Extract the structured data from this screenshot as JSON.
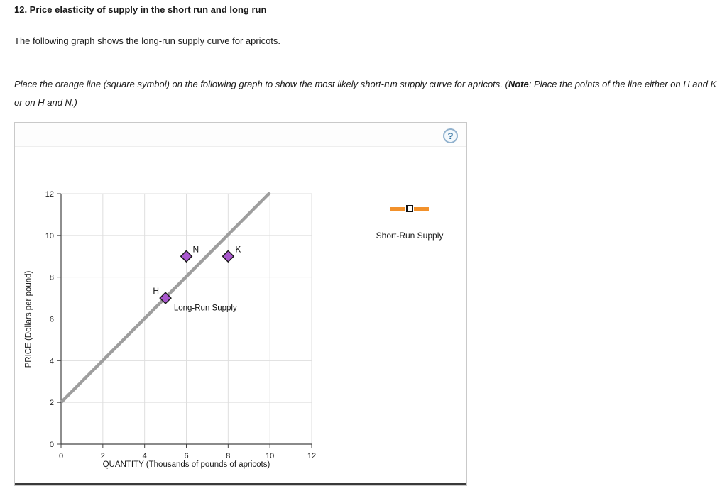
{
  "page": {
    "title": "12. Price elasticity of supply in the short run and long run",
    "intro": "The following graph shows the long-run supply curve for apricots."
  },
  "instruction": {
    "part1": "Place the orange line (square symbol) on the following graph to show the most likely short-run supply curve for apricots. (",
    "note_word": "Note",
    "part2": ": Place the points of the line either on H and K or on H and N.)"
  },
  "panel": {
    "help_icon": "?"
  },
  "legend": {
    "label": "Short-Run Supply",
    "line_color": "#f2912b",
    "square_fill": "#ffffff",
    "square_border": "#111111"
  },
  "chart_data": {
    "type": "scatter",
    "title": "",
    "xlabel": "QUANTITY (Thousands of pounds of apricots)",
    "ylabel": "PRICE (Dollars per pound)",
    "xlim": [
      0,
      12
    ],
    "ylim": [
      0,
      12
    ],
    "xticks": [
      0,
      2,
      4,
      6,
      8,
      10,
      12
    ],
    "yticks": [
      0,
      2,
      4,
      6,
      8,
      10,
      12
    ],
    "grid": true,
    "long_run_supply": {
      "label": "Long-Run Supply",
      "label_pos": [
        5.4,
        6.4
      ],
      "points": [
        [
          0,
          2
        ],
        [
          10,
          12.05
        ]
      ],
      "color": "#9e9e9e"
    },
    "points": [
      {
        "label": "H",
        "x": 5,
        "y": 7
      },
      {
        "label": "N",
        "x": 6,
        "y": 9
      },
      {
        "label": "K",
        "x": 8,
        "y": 9
      }
    ],
    "point_color": "#a958ce",
    "point_border": "#1a1a1a"
  }
}
